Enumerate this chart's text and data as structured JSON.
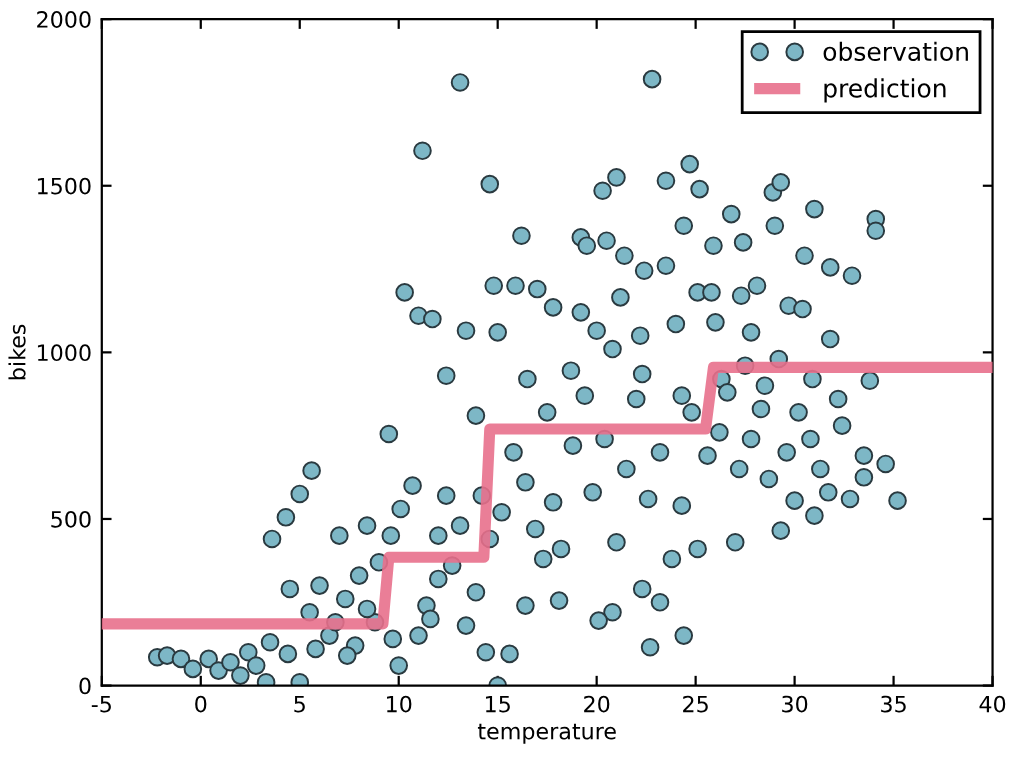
{
  "chart_data": {
    "type": "scatter",
    "xlabel": "temperature",
    "ylabel": "bikes",
    "xlim": [
      -5,
      40
    ],
    "ylim": [
      0,
      2000
    ],
    "xticks": [
      -5,
      0,
      5,
      10,
      15,
      20,
      25,
      30,
      35,
      40
    ],
    "yticks": [
      0,
      500,
      1000,
      1500,
      2000
    ],
    "grid": false,
    "legend": "top right",
    "series": [
      {
        "name": "observation",
        "marker": "circle",
        "color": "#7db7c6",
        "x": [
          13.1,
          22.8,
          11.2,
          14.6,
          24.7,
          21,
          20.3,
          23.5,
          25.2,
          28.9,
          29.3,
          31,
          34.1,
          34.1,
          26.8,
          24.4,
          29,
          16.2,
          19.2,
          19.5,
          20.5,
          25.9,
          27.4,
          30.5,
          31.8,
          32.9,
          21.4,
          22.4,
          23.5,
          14.8,
          10.3,
          11,
          11.7,
          15.9,
          17,
          17.8,
          21.2,
          25.1,
          25.8,
          27.3,
          28.1,
          29.7,
          30.4,
          13.4,
          15,
          19.2,
          20,
          22.2,
          24,
          26,
          27.8,
          31.8,
          12.4,
          16.5,
          18.7,
          20.8,
          22.3,
          24.3,
          26.3,
          27.5,
          28.5,
          30.9,
          33.8,
          35.2,
          34.6,
          33.5,
          33.5,
          32.2,
          32.8,
          31,
          29.3,
          30,
          27,
          24.4,
          22.7,
          23.2,
          22.3,
          20.8,
          20.1,
          18.1,
          16.4,
          15.6,
          15,
          14.4,
          14.2,
          13.9,
          9.5,
          5.6,
          5,
          4.3,
          3.6,
          4.5,
          -2.2,
          -1.7,
          -1,
          -0.4,
          0.4,
          0.9,
          1.5,
          2,
          2.4,
          2.8,
          3.3,
          3.5,
          4.4,
          5,
          5.5,
          6,
          6.5,
          7,
          7.3,
          7.8,
          8,
          8.4,
          8.8,
          9,
          9.6,
          10,
          10.1,
          10.7,
          11,
          11.4,
          12,
          12.4,
          12.7,
          13.1,
          13.4,
          13.9,
          14.6,
          15.2,
          15.8,
          16.4,
          16.9,
          17.5,
          17.8,
          18.2,
          18.8,
          19.4,
          19.8,
          20.4,
          21,
          21.5,
          22,
          22.6,
          23.2,
          23.8,
          24.3,
          24.8,
          25.1,
          25.6,
          26.2,
          26.6,
          27.2,
          27.8,
          28.3,
          28.7,
          29.2,
          29.6,
          30.2,
          30.8,
          31.3,
          31.7,
          32.4,
          17.3,
          12,
          8.4,
          6.8,
          5.8,
          7.4,
          9.7,
          11.6
        ],
        "values": [
          1810,
          1820,
          1605,
          1505,
          1565,
          1525,
          1485,
          1515,
          1490,
          1480,
          1510,
          1430,
          1400,
          1365,
          1415,
          1380,
          1380,
          1350,
          1345,
          1320,
          1335,
          1320,
          1330,
          1290,
          1255,
          1230,
          1290,
          1245,
          1260,
          1200,
          1180,
          1110,
          1100,
          1200,
          1190,
          1135,
          1165,
          1180,
          1180,
          1170,
          1200,
          1140,
          1130,
          1065,
          1060,
          1120,
          1065,
          1050,
          1085,
          1090,
          1060,
          1040,
          930,
          920,
          945,
          1010,
          935,
          870,
          920,
          960,
          900,
          920,
          915,
          555,
          665,
          690,
          625,
          860,
          560,
          510,
          465,
          555,
          430,
          150,
          115,
          250,
          290,
          220,
          195,
          255,
          240,
          95,
          0,
          100,
          570,
          810,
          755,
          645,
          575,
          505,
          440,
          290,
          85,
          90,
          80,
          50,
          80,
          45,
          70,
          30,
          100,
          60,
          10,
          130,
          95,
          10,
          220,
          300,
          150,
          450,
          260,
          120,
          330,
          480,
          190,
          370,
          450,
          60,
          530,
          600,
          150,
          240,
          450,
          570,
          360,
          480,
          180,
          280,
          440,
          520,
          700,
          610,
          470,
          820,
          550,
          410,
          720,
          870,
          580,
          740,
          430,
          650,
          860,
          560,
          700,
          380,
          540,
          820,
          410,
          690,
          760,
          880,
          650,
          740,
          830,
          620,
          980,
          700,
          820,
          740,
          650,
          580,
          780,
          380,
          320,
          230,
          190,
          110,
          90,
          140,
          200
        ]
      },
      {
        "name": "prediction",
        "type": "line",
        "marker": "none",
        "line_style": "solid",
        "color": "#e8708c",
        "x": [
          -5,
          9.2,
          9.5,
          14.3,
          14.6,
          25.5,
          25.9,
          40
        ],
        "values": [
          185,
          185,
          385,
          385,
          770,
          770,
          955,
          955
        ]
      }
    ]
  }
}
